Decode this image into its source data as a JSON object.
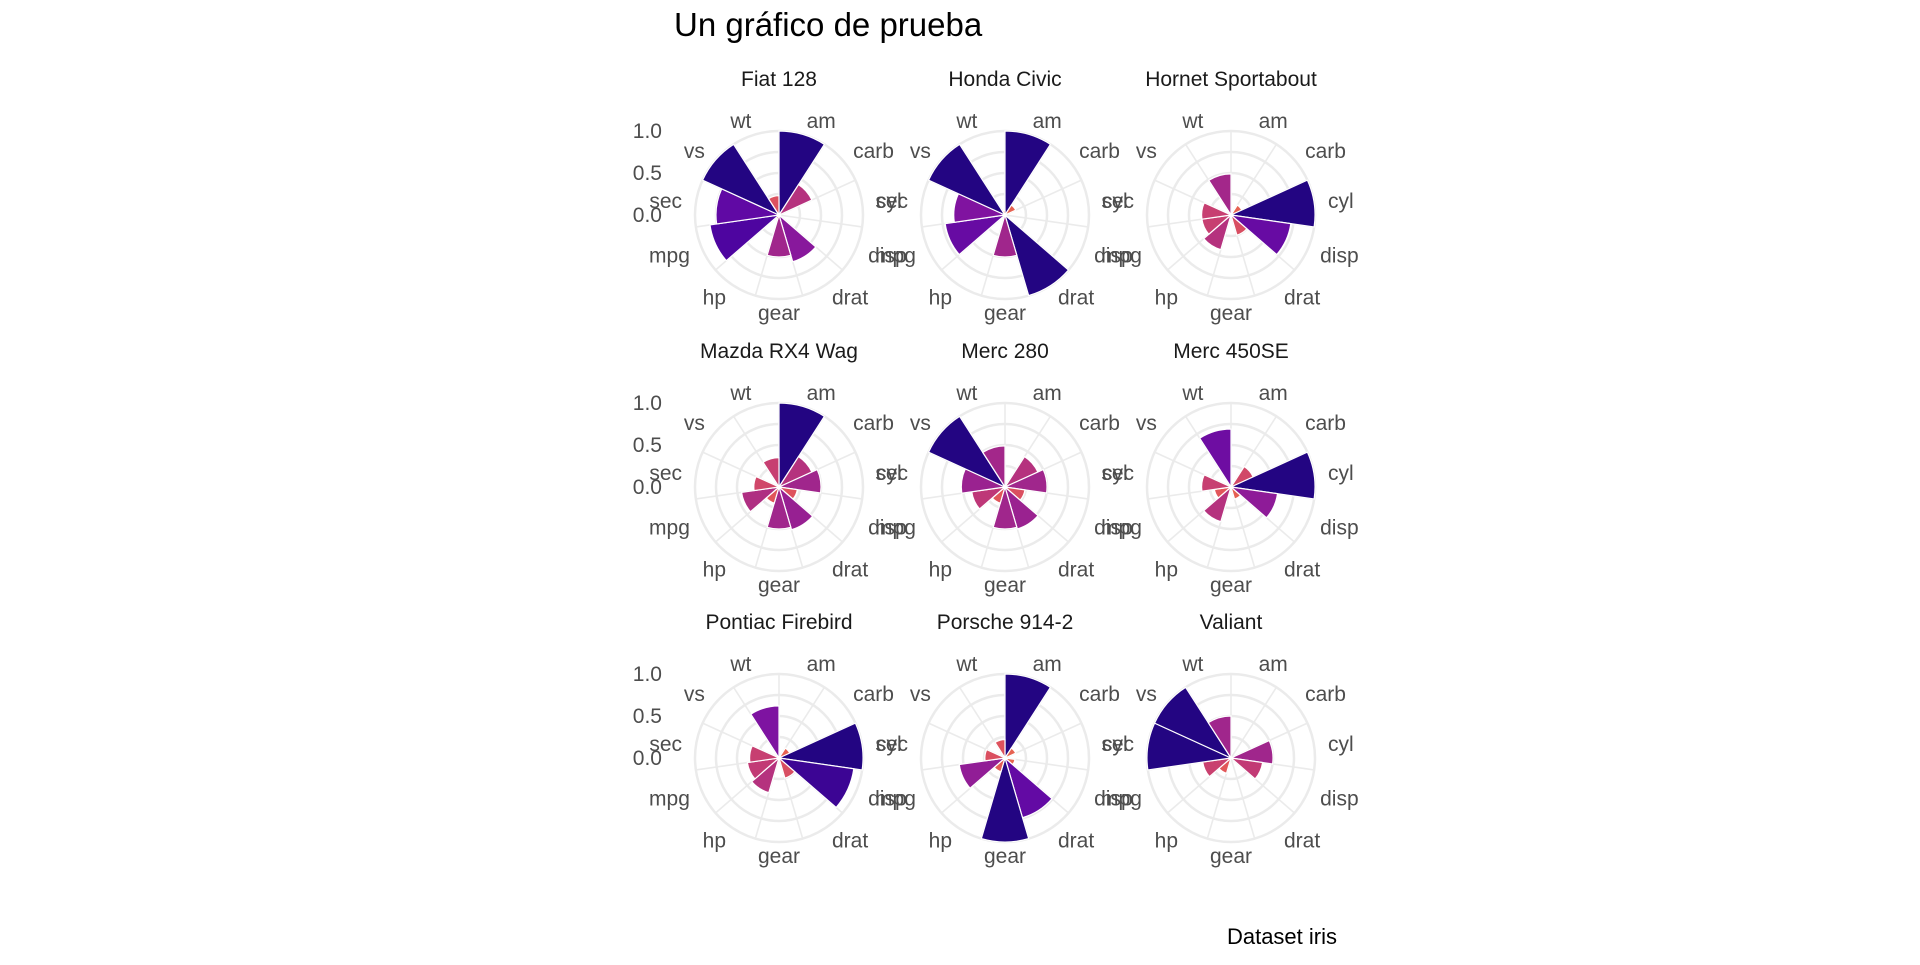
{
  "chart_data": {
    "type": "polar-bar",
    "title": "Un gráfico de prueba",
    "caption": "Dataset iris",
    "variables": [
      "am",
      "carb",
      "cyl",
      "disp",
      "drat",
      "gear",
      "hp",
      "mpg",
      "qsec",
      "vs",
      "wt"
    ],
    "variable_tick_labels": [
      "am",
      "carb",
      "cyl",
      "disp",
      "drat",
      "gear",
      "hp",
      "mpg",
      "sec",
      "vs",
      "wt"
    ],
    "radial_axis": {
      "ticks": [
        0.0,
        0.5,
        1.0
      ],
      "tick_labels": [
        "0.0",
        "0.5",
        "1.0"
      ],
      "range": [
        0,
        1
      ]
    },
    "grid": true,
    "color_scale": "plasma",
    "facets": [
      {
        "name": "Fiat 128",
        "values": [
          1.0,
          0.43,
          0.0,
          0.02,
          0.58,
          0.5,
          0.05,
          0.83,
          0.75,
          1.0,
          0.23
        ]
      },
      {
        "name": "Honda Civic",
        "values": [
          1.0,
          0.14,
          0.0,
          0.01,
          1.0,
          0.5,
          0.0,
          0.72,
          0.61,
          1.0,
          0.05
        ]
      },
      {
        "name": "Hornet Sportabout",
        "values": [
          0.0,
          0.14,
          1.0,
          0.72,
          0.25,
          0.0,
          0.43,
          0.35,
          0.35,
          0.0,
          0.49
        ]
      },
      {
        "name": "Mazda RX4 Wag",
        "values": [
          1.0,
          0.43,
          0.5,
          0.22,
          0.53,
          0.5,
          0.2,
          0.45,
          0.3,
          0.0,
          0.35
        ]
      },
      {
        "name": "Merc 280",
        "values": [
          0.0,
          0.43,
          0.5,
          0.24,
          0.52,
          0.5,
          0.2,
          0.4,
          0.52,
          1.0,
          0.49
        ]
      },
      {
        "name": "Merc 450SE",
        "values": [
          0.0,
          0.29,
          1.0,
          0.56,
          0.15,
          0.0,
          0.43,
          0.2,
          0.35,
          0.0,
          0.69
        ]
      },
      {
        "name": "Pontiac Firebird",
        "values": [
          0.0,
          0.14,
          1.0,
          0.9,
          0.25,
          0.0,
          0.43,
          0.38,
          0.35,
          0.0,
          0.62
        ]
      },
      {
        "name": "Porsche 914-2",
        "values": [
          1.0,
          0.14,
          0.0,
          0.12,
          0.74,
          1.0,
          0.17,
          0.55,
          0.24,
          0.0,
          0.22
        ]
      },
      {
        "name": "Valiant",
        "values": [
          0.0,
          0.0,
          0.5,
          0.38,
          0.0,
          0.0,
          0.19,
          0.34,
          1.0,
          1.0,
          0.5
        ]
      }
    ]
  }
}
